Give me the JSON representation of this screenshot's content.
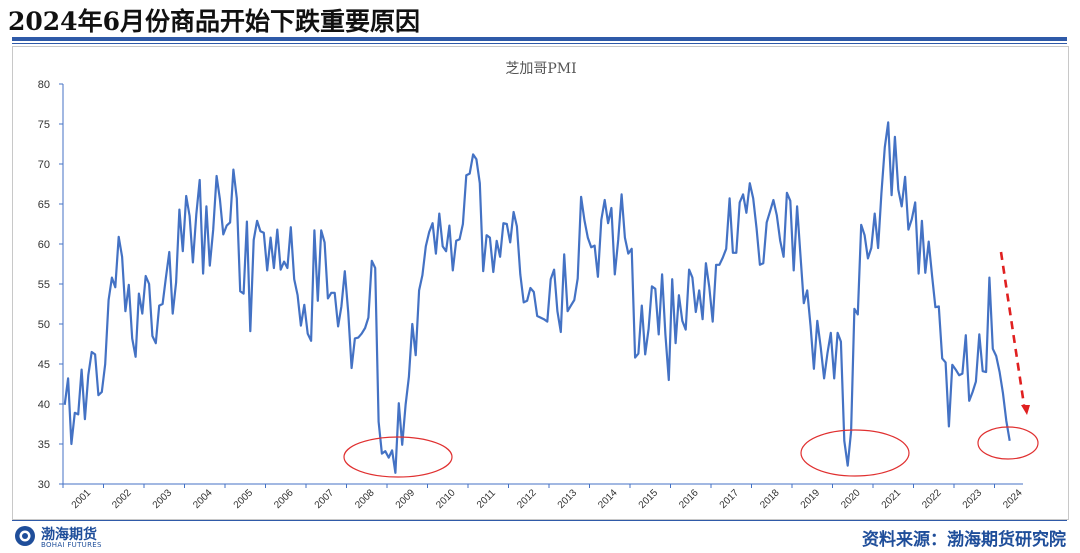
{
  "header": {
    "title": "2024年6月份商品开始下跌重要原因"
  },
  "footer": {
    "logo_cn": "渤海期货",
    "logo_en": "BOHAI FUTURES",
    "source": "资料来源：渤海期货研究院"
  },
  "colors": {
    "line": "#4472c4",
    "brand": "#1f4e9a",
    "circle": "#e03030",
    "arrow": "#e02020",
    "rule": "#2f5aa8"
  },
  "chart_data": {
    "type": "line",
    "title": "芝加哥PMI",
    "xlabel": "",
    "ylabel": "",
    "ylim": [
      30,
      80
    ],
    "yticks": [
      30,
      35,
      40,
      45,
      50,
      55,
      60,
      65,
      70,
      75,
      80
    ],
    "xticks": [
      "2001",
      "2002",
      "2003",
      "2004",
      "2005",
      "2006",
      "2007",
      "2008",
      "2009",
      "2010",
      "2011",
      "2012",
      "2013",
      "2014",
      "2015",
      "2016",
      "2017",
      "2018",
      "2019",
      "2020",
      "2021",
      "2022",
      "2023",
      "2024"
    ],
    "grid": false,
    "legend": "none",
    "x_start": "2001-01",
    "frequency": "monthly",
    "series": [
      {
        "values": [
          39.9,
          43.2,
          35.0,
          38.9,
          38.7,
          44.3,
          38.1,
          43.6,
          46.5,
          46.2,
          41.1,
          41.5,
          45.0,
          53.0,
          55.8,
          54.6,
          60.9,
          58.4,
          51.6,
          54.9,
          48.2,
          45.9,
          53.8,
          51.3,
          56.0,
          55.0,
          48.5,
          47.6,
          52.3,
          52.5,
          55.8,
          59.0,
          51.3,
          55.2,
          64.3,
          59.1,
          66.0,
          63.5,
          57.7,
          63.7,
          68.0,
          56.3,
          64.7,
          57.3,
          61.8,
          68.5,
          65.6,
          61.2,
          62.3,
          62.7,
          69.3,
          65.7,
          54.1,
          53.8,
          62.8,
          49.1,
          60.5,
          62.9,
          61.6,
          61.4,
          56.7,
          60.8,
          57.0,
          61.8,
          56.8,
          57.8,
          57.0,
          62.1,
          55.6,
          53.6,
          49.8,
          52.4,
          48.8,
          47.9,
          61.7,
          52.9,
          61.7,
          60.2,
          53.2,
          53.9,
          53.9,
          49.7,
          52.2,
          56.6,
          51.5,
          44.5,
          48.2,
          48.3,
          48.8,
          49.5,
          50.8,
          57.9,
          57.0,
          37.8,
          33.8,
          34.1,
          33.3,
          34.2,
          31.4,
          40.1,
          34.9,
          39.9,
          43.4,
          50.0,
          46.1,
          54.2,
          56.1,
          59.7,
          61.5,
          62.6,
          58.8,
          63.8,
          59.7,
          59.1,
          62.3,
          56.7,
          60.4,
          60.6,
          62.5,
          68.6,
          68.8,
          71.2,
          70.6,
          67.6,
          56.6,
          61.1,
          60.8,
          56.5,
          60.4,
          58.4,
          62.6,
          62.5,
          60.2,
          64.0,
          62.2,
          56.2,
          52.7,
          52.9,
          54.5,
          54.0,
          51.0,
          50.8,
          50.6,
          50.3,
          55.6,
          56.8,
          51.6,
          49.0,
          58.7,
          51.6,
          52.3,
          53.0,
          55.7,
          65.9,
          63.0,
          60.8,
          59.6,
          59.8,
          55.9,
          63.0,
          65.5,
          62.6,
          64.5,
          56.2,
          60.5,
          66.2,
          60.8,
          58.8,
          59.4,
          45.8,
          46.3,
          52.3,
          46.2,
          49.4,
          54.7,
          54.4,
          48.7,
          56.2,
          48.7,
          43.0,
          55.6,
          47.6,
          53.6,
          50.4,
          49.3,
          56.8,
          55.8,
          51.5,
          54.2,
          50.6,
          57.6,
          54.6,
          50.3,
          57.4,
          57.4,
          58.3,
          59.4,
          65.7,
          58.9,
          58.9,
          65.2,
          66.2,
          63.9,
          67.6,
          65.7,
          61.9,
          57.4,
          57.6,
          62.7,
          64.1,
          65.5,
          63.6,
          60.4,
          58.4,
          66.4,
          65.4,
          56.7,
          64.7,
          58.7,
          52.6,
          54.2,
          49.7,
          44.4,
          50.4,
          47.1,
          43.2,
          46.3,
          48.9,
          43.2,
          48.9,
          47.8,
          35.4,
          32.3,
          36.6,
          51.9,
          51.2,
          62.4,
          61.1,
          58.2,
          59.5,
          63.8,
          59.5,
          66.3,
          72.1,
          75.2,
          66.1,
          73.4,
          66.8,
          64.7,
          68.4,
          61.8,
          63.1,
          65.2,
          56.3,
          62.9,
          56.4,
          60.3,
          56.0,
          52.1,
          52.2,
          45.7,
          45.2,
          37.2,
          44.9,
          44.3,
          43.6,
          43.8,
          48.6,
          40.4,
          41.5,
          42.8,
          48.7,
          44.1,
          44.0,
          55.8,
          46.9,
          46.0,
          44.0,
          41.4,
          37.9,
          35.4
        ]
      }
    ]
  }
}
